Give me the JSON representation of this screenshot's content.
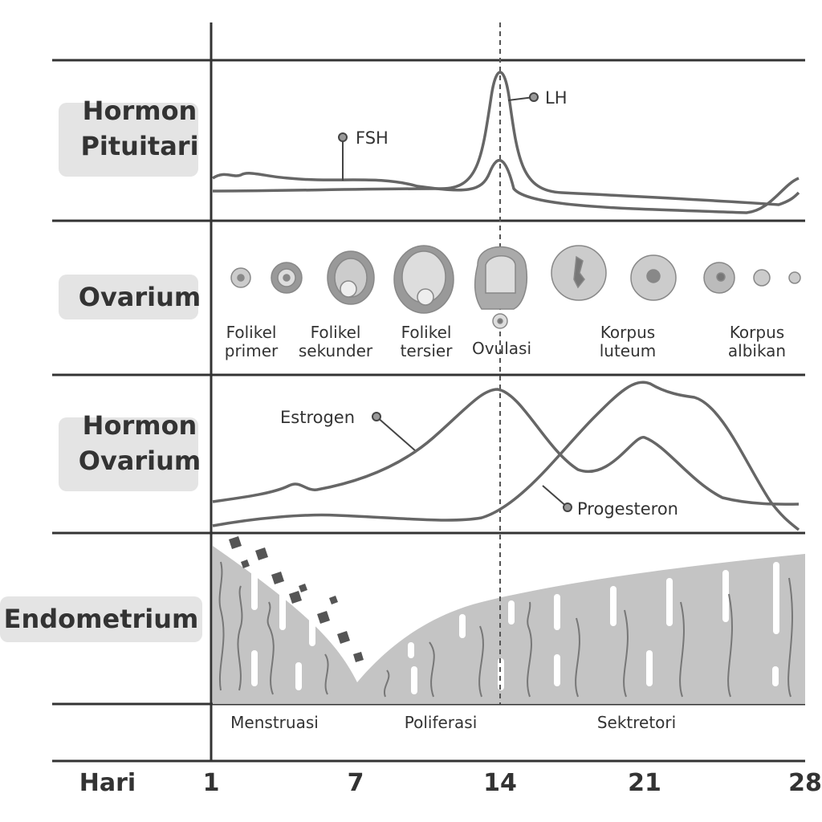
{
  "rows": [
    {
      "label": [
        "Hormon",
        "Pituitari"
      ]
    },
    {
      "label": [
        "Ovarium"
      ]
    },
    {
      "label": [
        "Hormon",
        "Ovarium"
      ]
    },
    {
      "label": [
        "Endometrium"
      ]
    }
  ],
  "pituitary_hormones": {
    "fsh": "FSH",
    "lh": "LH"
  },
  "ovary_stages": [
    [
      "Folikel",
      "primer"
    ],
    [
      "Folikel",
      "sekunder"
    ],
    [
      "Folikel",
      "tersier"
    ],
    [
      "Ovulasi"
    ],
    [
      "Korpus",
      "luteum"
    ],
    [
      "Korpus",
      "albikan"
    ]
  ],
  "ovarian_hormones": {
    "estrogen": "Estrogen",
    "progesterone": "Progesteron"
  },
  "phases": [
    "Menstruasi",
    "Poliferasi",
    "Sektretori"
  ],
  "axis": {
    "label": "Hari",
    "ticks": [
      "1",
      "7",
      "14",
      "21",
      "28"
    ]
  }
}
